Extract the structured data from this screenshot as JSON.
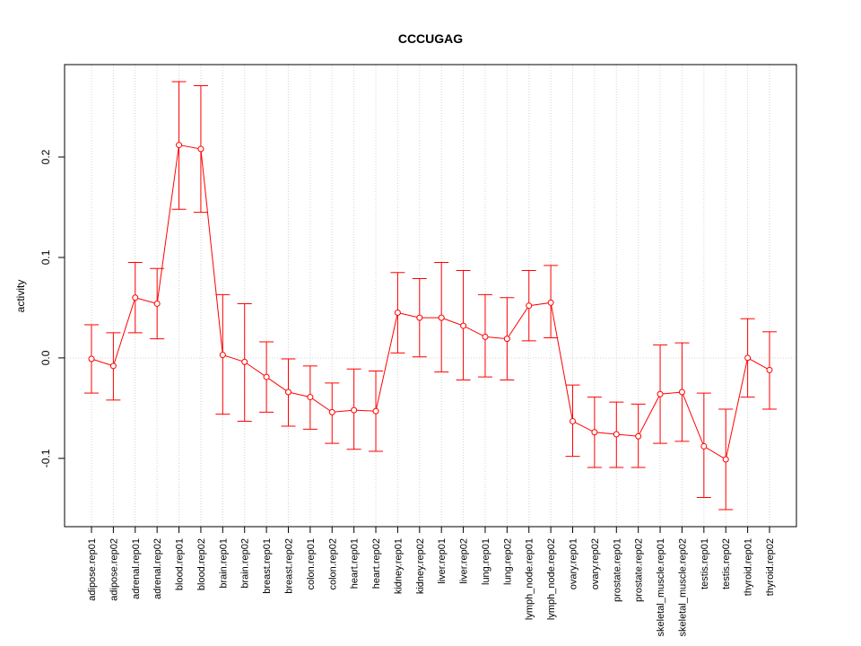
{
  "chart_data": {
    "type": "line",
    "title": "CCCUGAG",
    "xlabel": "",
    "ylabel": "activity",
    "ylim": [
      -0.168,
      0.292
    ],
    "yticks": [
      -0.1,
      0.0,
      0.1,
      0.2
    ],
    "ytick_labels": [
      "-0.1",
      "0.0",
      "0.1",
      "0.2"
    ],
    "grid": "dotted vertical at each category, horizontal at 0",
    "colors": {
      "series": "#ff0000",
      "grid": "#d3d3d3"
    },
    "categories": [
      "adipose.rep01",
      "adipose.rep02",
      "adrenal.rep01",
      "adrenal.rep02",
      "blood.rep01",
      "blood.rep02",
      "brain.rep01",
      "brain.rep02",
      "breast.rep01",
      "breast.rep02",
      "colon.rep01",
      "colon.rep02",
      "heart.rep01",
      "heart.rep02",
      "kidney.rep01",
      "kidney.rep02",
      "liver.rep01",
      "liver.rep02",
      "lung.rep01",
      "lung.rep02",
      "lymph_node.rep01",
      "lymph_node.rep02",
      "ovary.rep01",
      "ovary.rep02",
      "prostate.rep01",
      "prostate.rep02",
      "skeletal_muscle.rep01",
      "skeletal_muscle.rep02",
      "testis.rep01",
      "testis.rep02",
      "thyroid.rep01",
      "thyroid.rep02"
    ],
    "values": [
      -0.001,
      -0.008,
      0.06,
      0.054,
      0.212,
      0.208,
      0.003,
      -0.004,
      -0.019,
      -0.034,
      -0.039,
      -0.054,
      -0.052,
      -0.053,
      0.045,
      0.04,
      0.04,
      0.032,
      0.021,
      0.019,
      0.052,
      0.055,
      -0.063,
      -0.074,
      -0.076,
      -0.078,
      -0.036,
      -0.034,
      -0.088,
      -0.101,
      0.0,
      -0.012
    ],
    "upper": [
      0.033,
      0.025,
      0.095,
      0.089,
      0.275,
      0.271,
      0.063,
      0.054,
      0.016,
      -0.001,
      -0.008,
      -0.025,
      -0.011,
      -0.013,
      0.085,
      0.079,
      0.095,
      0.087,
      0.063,
      0.06,
      0.087,
      0.092,
      -0.027,
      -0.039,
      -0.044,
      -0.046,
      0.013,
      0.015,
      -0.035,
      -0.051,
      0.039,
      0.026
    ],
    "lower": [
      -0.035,
      -0.042,
      0.025,
      0.019,
      0.148,
      0.145,
      -0.056,
      -0.063,
      -0.054,
      -0.068,
      -0.071,
      -0.085,
      -0.091,
      -0.093,
      0.005,
      0.001,
      -0.014,
      -0.022,
      -0.019,
      -0.022,
      0.017,
      0.02,
      -0.098,
      -0.109,
      -0.109,
      -0.109,
      -0.085,
      -0.083,
      -0.139,
      -0.151,
      -0.039,
      -0.051
    ]
  }
}
